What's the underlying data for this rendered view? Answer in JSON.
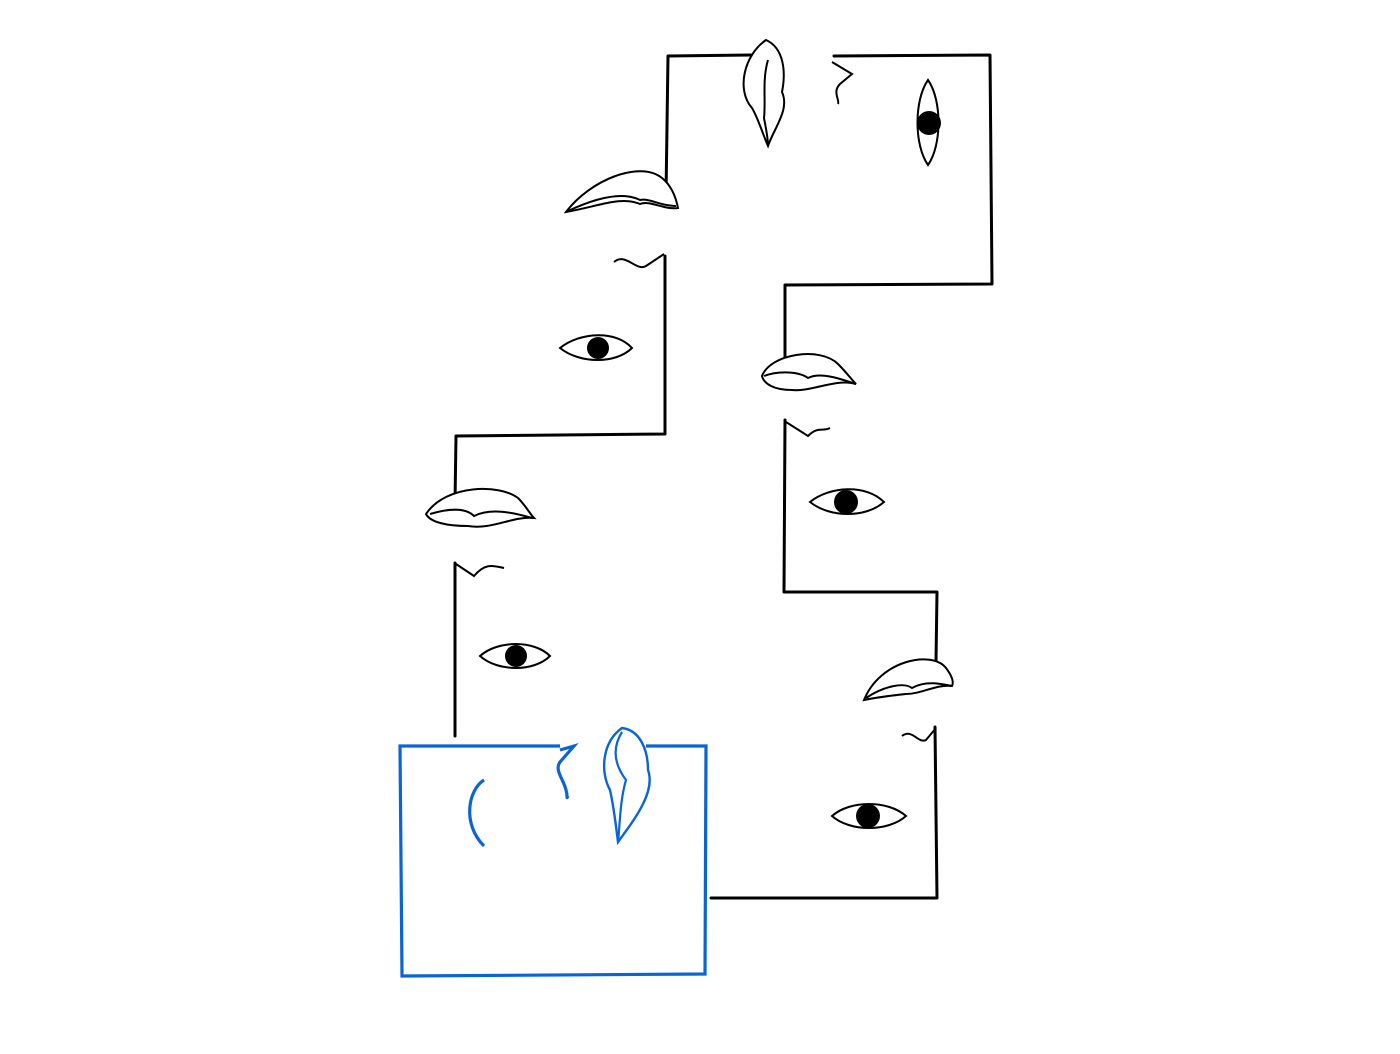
{
  "artwork": {
    "style": "continuous line drawing",
    "colors": {
      "background": "#ffffff",
      "ink": "#000000",
      "highlight": "#0a64d6"
    },
    "faces": [
      {
        "id": "face-1",
        "features": [
          "lips",
          "nose",
          "eye"
        ],
        "color": "#000000"
      },
      {
        "id": "face-2",
        "features": [
          "lips",
          "nose",
          "eye"
        ],
        "color": "#000000"
      },
      {
        "id": "face-3",
        "features": [
          "lips",
          "nose",
          "eye"
        ],
        "color": "#000000"
      },
      {
        "id": "face-4",
        "features": [
          "lips",
          "nose",
          "eye"
        ],
        "color": "#000000"
      },
      {
        "id": "face-5",
        "features": [
          "lips",
          "nose",
          "eye"
        ],
        "color": "#000000"
      },
      {
        "id": "face-6",
        "features": [
          "lips",
          "nose",
          "eye"
        ],
        "color": "#000000"
      },
      {
        "id": "face-highlighted",
        "features": [
          "lips",
          "nose",
          "ear"
        ],
        "color": "#0a64d6"
      }
    ]
  }
}
